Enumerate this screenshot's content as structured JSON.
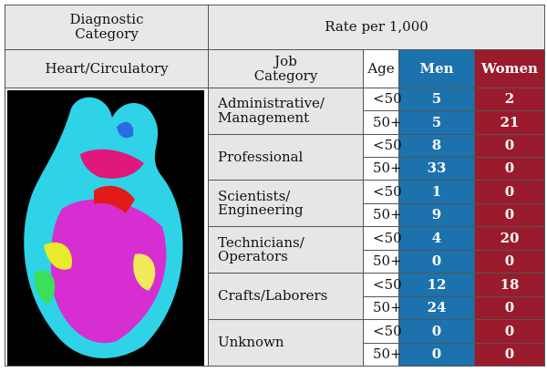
{
  "header": {
    "diagnostic_category": [
      "Diagnostic",
      "Category"
    ],
    "rate": "Rate per 1,000"
  },
  "subheader": {
    "diagnostic": "Heart/Circulatory",
    "job_category": [
      "Job",
      "Category"
    ],
    "age": "Age",
    "men": "Men",
    "women": "Women"
  },
  "groups": [
    {
      "job": [
        "Administrative/",
        "Management"
      ],
      "rows": [
        {
          "age": "<50",
          "men": 5,
          "women": 2
        },
        {
          "age": "50+",
          "men": 5,
          "women": 21
        }
      ]
    },
    {
      "job": [
        "Professional"
      ],
      "rows": [
        {
          "age": "<50",
          "men": 8,
          "women": 0
        },
        {
          "age": "50+",
          "men": 33,
          "women": 0
        }
      ]
    },
    {
      "job": [
        "Scientists/",
        "Engineering"
      ],
      "rows": [
        {
          "age": "<50",
          "men": 1,
          "women": 0
        },
        {
          "age": "50+",
          "men": 9,
          "women": 0
        }
      ]
    },
    {
      "job": [
        "Technicians/",
        "Operators"
      ],
      "rows": [
        {
          "age": "<50",
          "men": 4,
          "women": 20
        },
        {
          "age": "50+",
          "men": 0,
          "women": 0
        }
      ]
    },
    {
      "job": [
        "Crafts/Laborers"
      ],
      "rows": [
        {
          "age": "<50",
          "men": 12,
          "women": 18
        },
        {
          "age": "50+",
          "men": 24,
          "women": 0
        }
      ]
    },
    {
      "job": [
        "Unknown"
      ],
      "rows": [
        {
          "age": "<50",
          "men": 0,
          "women": 0
        },
        {
          "age": "50+",
          "men": 0,
          "women": 0
        }
      ]
    }
  ]
}
